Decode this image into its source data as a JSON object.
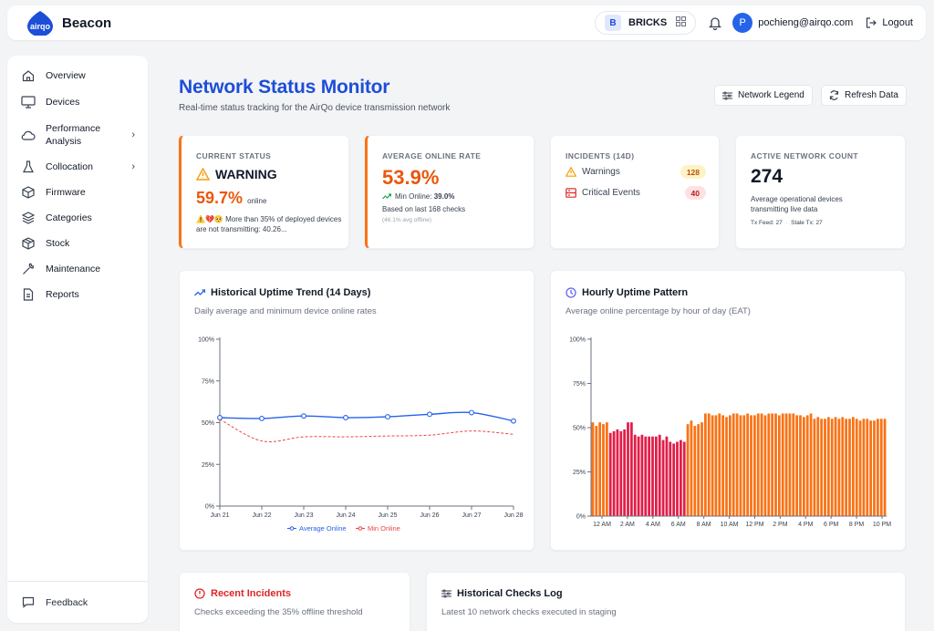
{
  "header": {
    "app_name": "Beacon",
    "logo_text": "airqo",
    "org_initial": "B",
    "org_name": "BRICKS",
    "user_initial": "P",
    "user_email": "pochieng@airqo.com",
    "logout_label": "Logout"
  },
  "sidebar": {
    "items": [
      {
        "label": "Overview",
        "icon": "home-icon"
      },
      {
        "label": "Devices",
        "icon": "monitor-icon"
      },
      {
        "label": "Performance",
        "label2": "Analysis",
        "icon": "cloud-icon",
        "chevron": true
      },
      {
        "label": "Collocation",
        "icon": "flask-icon",
        "chevron": true
      },
      {
        "label": "Firmware",
        "icon": "box-icon"
      },
      {
        "label": "Categories",
        "icon": "layers-icon"
      },
      {
        "label": "Stock",
        "icon": "package-icon"
      },
      {
        "label": "Maintenance",
        "icon": "wrench-icon"
      },
      {
        "label": "Reports",
        "icon": "file-icon"
      }
    ],
    "feedback_label": "Feedback"
  },
  "page": {
    "title": "Network Status Monitor",
    "subtitle": "Real-time status tracking for the AirQo device transmission network",
    "legend_button": "Network Legend",
    "refresh_button": "Refresh Data"
  },
  "cards": {
    "status": {
      "label": "CURRENT STATUS",
      "state": "WARNING",
      "value": "59.7%",
      "value_suffix": "online",
      "emoji": "⚠️💔🥺",
      "note": "More than 35% of deployed devices are not transmitting: 40.26..."
    },
    "rate": {
      "label": "AVERAGE ONLINE RATE",
      "value": "53.9%",
      "min_label": "Min Online:",
      "min_value": "39.0%",
      "based_on": "Based on last 168 checks",
      "avg_offline": "(46.1% avg offline)"
    },
    "incidents": {
      "label": "INCIDENTS (14D)",
      "warnings_label": "Warnings",
      "warnings_count": "128",
      "critical_label": "Critical Events",
      "critical_count": "40"
    },
    "active": {
      "label": "ACTIVE NETWORK COUNT",
      "value": "274",
      "desc": "Average operational devices transmitting live data",
      "tx_feed": "Tx Feed: 27",
      "separator": "·",
      "stale_tx": "Stale Tx: 27"
    }
  },
  "trend_card": {
    "title": "Historical Uptime Trend (14 Days)",
    "subtitle": "Daily average and minimum device online rates"
  },
  "hourly_card": {
    "title": "Hourly Uptime Pattern",
    "subtitle": "Average online percentage by hour of day (EAT)"
  },
  "bottom": {
    "incidents_title": "Recent Incidents",
    "incidents_sub": "Checks exceeding the 35% offline threshold",
    "log_title": "Historical Checks Log",
    "log_sub": "Latest 10 network checks executed in staging"
  },
  "colors": {
    "primary": "#1d4ed8",
    "accent": "#f97316",
    "bar_orange": "#f97316",
    "bar_red": "#e11d48",
    "avg_line": "#2563eb",
    "min_line": "#ef4444"
  },
  "chart_data": [
    {
      "type": "line",
      "title": "Historical Uptime Trend (14 Days)",
      "x": [
        "Jun 21",
        "Jun 22",
        "Jun 23",
        "Jun 24",
        "Jun 25",
        "Jun 26",
        "Jun 27",
        "Jun 28"
      ],
      "y_ticks": [
        "0%",
        "25%",
        "50%",
        "75%",
        "100%"
      ],
      "ylim": [
        0,
        100
      ],
      "series": [
        {
          "name": "Average Online",
          "values": [
            53,
            52.5,
            54,
            53,
            53.5,
            55,
            56,
            51
          ]
        },
        {
          "name": "Min Online",
          "values": [
            52,
            39,
            41.5,
            41.5,
            42,
            42.5,
            45,
            43
          ]
        }
      ],
      "legend": "bottom"
    },
    {
      "type": "bar",
      "title": "Hourly Uptime Pattern",
      "x_ticks": [
        "12 AM",
        "2 AM",
        "4 AM",
        "6 AM",
        "8 AM",
        "10 AM",
        "12 PM",
        "2 PM",
        "4 PM",
        "6 PM",
        "8 PM",
        "10 PM"
      ],
      "y_ticks": [
        "0%",
        "25%",
        "50%",
        "75%",
        "100%"
      ],
      "ylim": [
        0,
        100
      ],
      "values": [
        53,
        51,
        53,
        52,
        53,
        47,
        48,
        49,
        48,
        49,
        53,
        53,
        46,
        45,
        46,
        45,
        45,
        45,
        45,
        46,
        43,
        45,
        42,
        41,
        42,
        43,
        42,
        52,
        54,
        51,
        52,
        53,
        58,
        58,
        57,
        57,
        58,
        57,
        56,
        57,
        58,
        58,
        57,
        57,
        58,
        57,
        57,
        58,
        58,
        57,
        58,
        58,
        58,
        57,
        58,
        58,
        58,
        58,
        57,
        57,
        56,
        57,
        58,
        55,
        56,
        55,
        55,
        56,
        55,
        56,
        55,
        56,
        55,
        55,
        56,
        55,
        54,
        55,
        55,
        54,
        54,
        55,
        55,
        55
      ],
      "highlight_range": [
        5,
        26
      ]
    }
  ]
}
